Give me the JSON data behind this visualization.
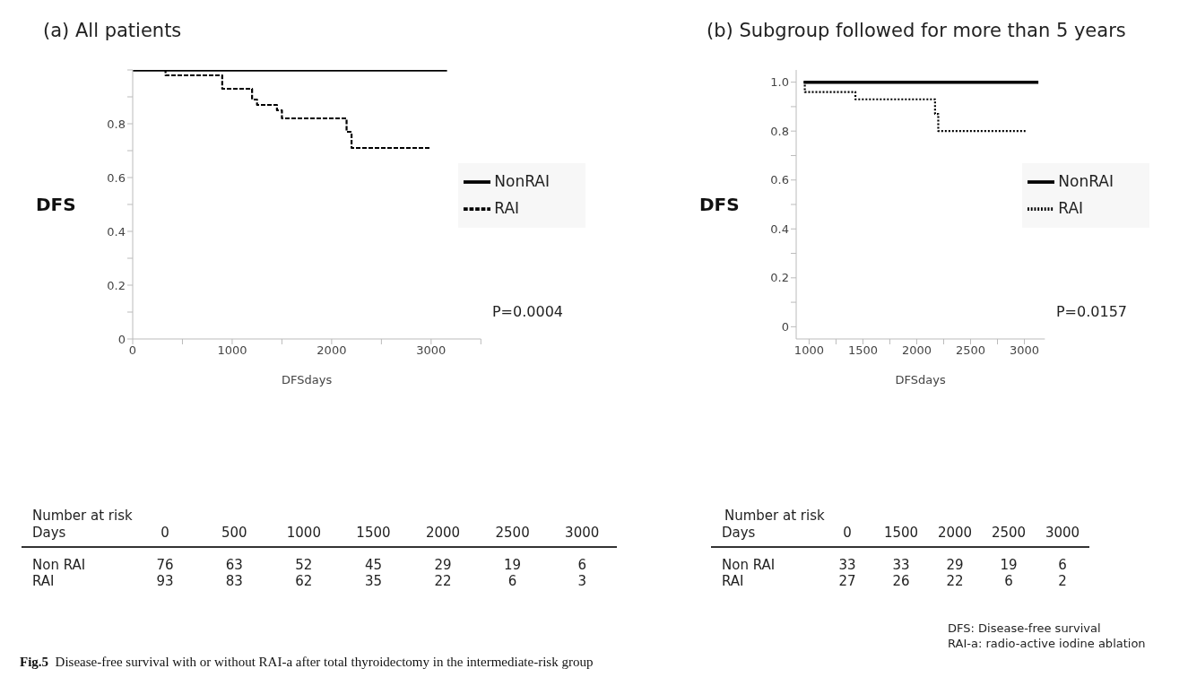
{
  "chart_data": [
    {
      "type": "step",
      "title": "(a) All patients",
      "xlabel": "DFSdays",
      "ylabel": "DFS",
      "xlim": [
        0,
        3500
      ],
      "ylim": [
        0,
        1
      ],
      "xticks": [
        0,
        {
          "value": 500,
          "label": null
        },
        1000,
        {
          "value": 1500,
          "label": null
        },
        2000,
        {
          "value": 2500,
          "label": null
        },
        3000,
        {
          "value": 3500,
          "label": null
        }
      ],
      "yticks": [
        0,
        {
          "value": 0.1,
          "label": null
        },
        0.2,
        {
          "value": 0.3,
          "label": null
        },
        0.4,
        {
          "value": 0.5,
          "label": null
        },
        0.6,
        {
          "value": 0.7,
          "label": null
        },
        0.8,
        {
          "value": 0.9,
          "label": null
        },
        {
          "value": 1,
          "label": null
        }
      ],
      "grid": false,
      "legend": "right",
      "marker": "none",
      "series": [
        {
          "name": "NonRAI",
          "color": "#000000",
          "line_style": "solid",
          "x": [
            0,
            3160
          ],
          "values": [
            1,
            1
          ]
        },
        {
          "name": "RAI",
          "color": "#000000",
          "line_style": "dashed",
          "x": [
            0,
            330,
            900,
            1200,
            1250,
            1450,
            1500,
            2150,
            2200,
            3000
          ],
          "values": [
            1,
            0.98,
            0.93,
            0.89,
            0.87,
            0.85,
            0.82,
            0.77,
            0.71,
            0.71
          ]
        }
      ],
      "annotations": [
        "P=0.0004",
        "Number at risk",
        "Days  0  500  1000  1500  2000  2500  3000",
        "Non RAI  76  63  52  45  29  19  6",
        "RAI  93  83  62  35  22  6  3"
      ]
    },
    {
      "type": "step",
      "title": "(b) Subgroup followed for more than 5 years",
      "xlabel": "DFSdays",
      "ylabel": "DFS",
      "xlim": [
        880,
        3190
      ],
      "ylim": [
        -0.05,
        1.05
      ],
      "xticks": [
        1000,
        {
          "value": 1250,
          "label": null
        },
        1500,
        {
          "value": 1750,
          "label": null
        },
        2000,
        {
          "value": 2250,
          "label": null
        },
        2500,
        {
          "value": 2750,
          "label": null
        },
        3000
      ],
      "yticks": [
        0,
        {
          "value": 0.1,
          "label": null
        },
        0.2,
        {
          "value": 0.3,
          "label": null
        },
        0.4,
        {
          "value": 0.5,
          "label": null
        },
        0.6,
        {
          "value": 0.7,
          "label": null
        },
        0.8,
        {
          "value": 0.9,
          "label": null
        },
        "1.0"
      ],
      "grid": false,
      "legend": "right",
      "marker": "none",
      "series": [
        {
          "name": "NonRAI",
          "color": "#000000",
          "line_style": "solid",
          "x": [
            950,
            3130
          ],
          "values": [
            1,
            1
          ]
        },
        {
          "name": "RAI",
          "color": "#000000",
          "line_style": "dotted",
          "x": [
            950,
            960,
            1430,
            2170,
            2200,
            3010
          ],
          "values": [
            1,
            0.96,
            0.93,
            0.87,
            0.8,
            0.8
          ]
        }
      ],
      "annotations": [
        "P=0.0157",
        "Number at risk",
        "Days  0  1500  2000  2500  3000",
        "Non RAI  33  33  29  19  6",
        "RAI  27  26  22  6  2",
        "DFS: Disease-free survival",
        "RAI-a: radio-active iodine ablation",
        "Fig.5  Disease-free survival with or without RAI-a after total thyroidectomy in the intermediate-risk group"
      ]
    }
  ]
}
